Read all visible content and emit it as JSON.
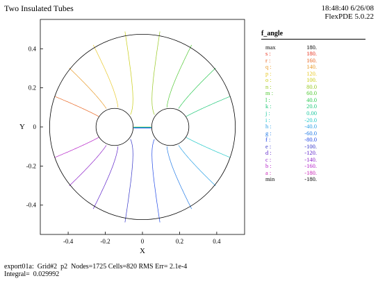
{
  "header": {
    "title": "Two Insulated Tubes",
    "time": "18:48:40 6/26/08",
    "program": "FlexPDE 5.0.22"
  },
  "footer": {
    "line1": "export01a:  Grid#2  p2  Nodes=1725 Cells=820 RMS Err= 2.1e-4",
    "line2": "Integral=  0.029992"
  },
  "legend": {
    "title": "f_angle",
    "rows": [
      {
        "key": "max",
        "value": "180.",
        "color": "#000000"
      },
      {
        "key": "s :",
        "value": "180.",
        "color": "#e8321e"
      },
      {
        "key": "r :",
        "value": "160.",
        "color": "#e8641e"
      },
      {
        "key": "q :",
        "value": "140.",
        "color": "#e89a28"
      },
      {
        "key": "p :",
        "value": "120.",
        "color": "#e8c828"
      },
      {
        "key": "o :",
        "value": "100.",
        "color": "#c8cc10"
      },
      {
        "key": "n :",
        "value": "80.0",
        "color": "#96c81e"
      },
      {
        "key": "m :",
        "value": "60.0",
        "color": "#50c832"
      },
      {
        "key": "l :",
        "value": "40.0",
        "color": "#28c850"
      },
      {
        "key": "k :",
        "value": "20.0",
        "color": "#1ec878"
      },
      {
        "key": "j :",
        "value": "0.00",
        "color": "#1ec8a0"
      },
      {
        "key": "i :",
        "value": "-20.0",
        "color": "#1ec8c8"
      },
      {
        "key": "h :",
        "value": "-40.0",
        "color": "#28a0e6"
      },
      {
        "key": "g :",
        "value": "-60.0",
        "color": "#1e78e6"
      },
      {
        "key": "f :",
        "value": "-80.0",
        "color": "#1e46e6"
      },
      {
        "key": "e :",
        "value": "-100.",
        "color": "#3232c8"
      },
      {
        "key": "d :",
        "value": "-120.",
        "color": "#5a1ec8"
      },
      {
        "key": "c :",
        "value": "-140.",
        "color": "#8c1ec8"
      },
      {
        "key": "b :",
        "value": "-160.",
        "color": "#b41ec8"
      },
      {
        "key": "a :",
        "value": "-180.",
        "color": "#c81eb4"
      },
      {
        "key": "min",
        "value": "-180.",
        "color": "#000000"
      }
    ]
  },
  "chart_data": {
    "type": "contour",
    "xlabel": "X",
    "ylabel": "Y",
    "xlim": [
      -0.55,
      0.55
    ],
    "ylim": [
      -0.55,
      0.55
    ],
    "xticks": [
      -0.4,
      -0.2,
      0,
      0.2,
      0.4
    ],
    "yticks": [
      -0.4,
      -0.2,
      0,
      0.2,
      0.4
    ],
    "xtick_labels": [
      "-0.4",
      "-0.2",
      "0",
      "0.2",
      "0.4"
    ],
    "ytick_labels": [
      "-0.4",
      "-0.2",
      "0",
      "0.2",
      "0.4"
    ],
    "domain": {
      "outer_radius": 0.5,
      "tube_radius": 0.1,
      "tube_centers": [
        [
          -0.15,
          0
        ],
        [
          0.15,
          0
        ]
      ]
    },
    "levels": [
      180,
      160,
      140,
      120,
      100,
      80,
      60,
      40,
      20,
      0,
      -20,
      -40,
      -60,
      -80,
      -100,
      -120,
      -140,
      -160,
      -180
    ],
    "level_labels": [
      "s",
      "r",
      "q",
      "p",
      "o",
      "n",
      "m",
      "l",
      "k",
      "j",
      "i",
      "h",
      "g",
      "f",
      "e",
      "d",
      "c",
      "b",
      "a"
    ]
  }
}
